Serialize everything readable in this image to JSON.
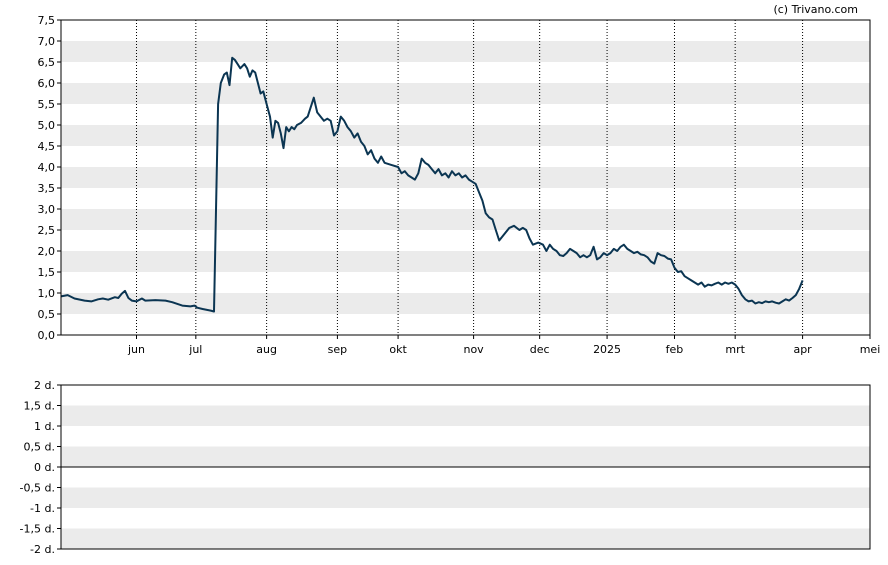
{
  "credit": "(c) Trivano.com",
  "colors": {
    "line": "#0b3552",
    "band": "#ebebeb",
    "grid": "#000000"
  },
  "chart_data": [
    {
      "type": "line",
      "title": "",
      "ylim": [
        0,
        7.5
      ],
      "grid": true,
      "y_ticks": [
        "0,0",
        "0,5",
        "1,0",
        "1,5",
        "2,0",
        "2,5",
        "3,0",
        "3,5",
        "4,0",
        "4,5",
        "5,0",
        "5,5",
        "6,0",
        "6,5",
        "7,0",
        "7,5"
      ],
      "x_ticks": [
        "jun",
        "jul",
        "aug",
        "sep",
        "okt",
        "nov",
        "dec",
        "2025",
        "feb",
        "mrt",
        "apr",
        "mei"
      ],
      "x_tick_positions": [
        1.12,
        2.0,
        3.05,
        4.1,
        5.0,
        6.12,
        7.1,
        8.1,
        9.1,
        10.0,
        11.0,
        12.0
      ],
      "series": [
        {
          "values": [
            [
              0.0,
              0.92
            ],
            [
              0.1,
              0.95
            ],
            [
              0.2,
              0.87
            ],
            [
              0.35,
              0.82
            ],
            [
              0.45,
              0.8
            ],
            [
              0.55,
              0.85
            ],
            [
              0.62,
              0.87
            ],
            [
              0.7,
              0.84
            ],
            [
              0.8,
              0.9
            ],
            [
              0.85,
              0.88
            ],
            [
              0.9,
              0.98
            ],
            [
              0.95,
              1.05
            ],
            [
              1.0,
              0.88
            ],
            [
              1.05,
              0.82
            ],
            [
              1.12,
              0.8
            ],
            [
              1.2,
              0.87
            ],
            [
              1.25,
              0.82
            ],
            [
              1.4,
              0.83
            ],
            [
              1.55,
              0.82
            ],
            [
              1.65,
              0.78
            ],
            [
              1.8,
              0.7
            ],
            [
              1.92,
              0.68
            ],
            [
              1.98,
              0.7
            ],
            [
              2.02,
              0.65
            ],
            [
              2.1,
              0.62
            ],
            [
              2.22,
              0.58
            ],
            [
              2.27,
              0.56
            ],
            [
              2.33,
              5.5
            ],
            [
              2.37,
              6.0
            ],
            [
              2.42,
              6.2
            ],
            [
              2.46,
              6.25
            ],
            [
              2.5,
              5.95
            ],
            [
              2.54,
              6.6
            ],
            [
              2.58,
              6.55
            ],
            [
              2.62,
              6.45
            ],
            [
              2.66,
              6.35
            ],
            [
              2.72,
              6.45
            ],
            [
              2.76,
              6.35
            ],
            [
              2.8,
              6.15
            ],
            [
              2.84,
              6.3
            ],
            [
              2.88,
              6.25
            ],
            [
              2.92,
              6.0
            ],
            [
              2.96,
              5.75
            ],
            [
              3.0,
              5.8
            ],
            [
              3.05,
              5.5
            ],
            [
              3.1,
              5.2
            ],
            [
              3.14,
              4.7
            ],
            [
              3.18,
              5.1
            ],
            [
              3.22,
              5.05
            ],
            [
              3.26,
              4.8
            ],
            [
              3.3,
              4.45
            ],
            [
              3.34,
              4.95
            ],
            [
              3.38,
              4.85
            ],
            [
              3.42,
              4.95
            ],
            [
              3.46,
              4.9
            ],
            [
              3.5,
              5.0
            ],
            [
              3.56,
              5.05
            ],
            [
              3.62,
              5.15
            ],
            [
              3.66,
              5.2
            ],
            [
              3.7,
              5.4
            ],
            [
              3.75,
              5.65
            ],
            [
              3.8,
              5.3
            ],
            [
              3.85,
              5.2
            ],
            [
              3.9,
              5.1
            ],
            [
              3.95,
              5.15
            ],
            [
              4.0,
              5.1
            ],
            [
              4.05,
              4.75
            ],
            [
              4.1,
              4.85
            ],
            [
              4.15,
              5.2
            ],
            [
              4.2,
              5.1
            ],
            [
              4.25,
              4.95
            ],
            [
              4.3,
              4.85
            ],
            [
              4.35,
              4.7
            ],
            [
              4.4,
              4.8
            ],
            [
              4.45,
              4.6
            ],
            [
              4.5,
              4.5
            ],
            [
              4.55,
              4.3
            ],
            [
              4.6,
              4.4
            ],
            [
              4.65,
              4.2
            ],
            [
              4.7,
              4.1
            ],
            [
              4.75,
              4.25
            ],
            [
              4.8,
              4.1
            ],
            [
              4.9,
              4.05
            ],
            [
              5.0,
              4.0
            ],
            [
              5.05,
              3.85
            ],
            [
              5.1,
              3.9
            ],
            [
              5.15,
              3.8
            ],
            [
              5.2,
              3.75
            ],
            [
              5.25,
              3.7
            ],
            [
              5.3,
              3.85
            ],
            [
              5.35,
              4.2
            ],
            [
              5.4,
              4.1
            ],
            [
              5.45,
              4.05
            ],
            [
              5.5,
              3.95
            ],
            [
              5.55,
              3.85
            ],
            [
              5.6,
              3.95
            ],
            [
              5.65,
              3.8
            ],
            [
              5.7,
              3.85
            ],
            [
              5.75,
              3.75
            ],
            [
              5.8,
              3.9
            ],
            [
              5.85,
              3.8
            ],
            [
              5.9,
              3.85
            ],
            [
              5.95,
              3.75
            ],
            [
              6.0,
              3.8
            ],
            [
              6.05,
              3.7
            ],
            [
              6.1,
              3.65
            ],
            [
              6.15,
              3.6
            ],
            [
              6.2,
              3.4
            ],
            [
              6.25,
              3.2
            ],
            [
              6.3,
              2.9
            ],
            [
              6.35,
              2.8
            ],
            [
              6.4,
              2.75
            ],
            [
              6.45,
              2.5
            ],
            [
              6.5,
              2.25
            ],
            [
              6.55,
              2.35
            ],
            [
              6.6,
              2.45
            ],
            [
              6.65,
              2.55
            ],
            [
              6.72,
              2.6
            ],
            [
              6.8,
              2.5
            ],
            [
              6.85,
              2.55
            ],
            [
              6.9,
              2.5
            ],
            [
              6.95,
              2.3
            ],
            [
              7.0,
              2.15
            ],
            [
              7.08,
              2.2
            ],
            [
              7.15,
              2.15
            ],
            [
              7.2,
              2.0
            ],
            [
              7.25,
              2.15
            ],
            [
              7.3,
              2.05
            ],
            [
              7.35,
              2.0
            ],
            [
              7.4,
              1.9
            ],
            [
              7.45,
              1.88
            ],
            [
              7.5,
              1.95
            ],
            [
              7.55,
              2.05
            ],
            [
              7.6,
              2.0
            ],
            [
              7.65,
              1.95
            ],
            [
              7.7,
              1.85
            ],
            [
              7.75,
              1.9
            ],
            [
              7.8,
              1.85
            ],
            [
              7.85,
              1.9
            ],
            [
              7.9,
              2.1
            ],
            [
              7.95,
              1.8
            ],
            [
              8.0,
              1.85
            ],
            [
              8.05,
              1.95
            ],
            [
              8.1,
              1.9
            ],
            [
              8.15,
              1.95
            ],
            [
              8.2,
              2.05
            ],
            [
              8.25,
              2.0
            ],
            [
              8.3,
              2.1
            ],
            [
              8.35,
              2.15
            ],
            [
              8.4,
              2.05
            ],
            [
              8.45,
              2.0
            ],
            [
              8.5,
              1.95
            ],
            [
              8.55,
              1.98
            ],
            [
              8.6,
              1.92
            ],
            [
              8.65,
              1.9
            ],
            [
              8.7,
              1.85
            ],
            [
              8.75,
              1.75
            ],
            [
              8.8,
              1.7
            ],
            [
              8.85,
              1.95
            ],
            [
              8.9,
              1.9
            ],
            [
              8.95,
              1.88
            ],
            [
              9.0,
              1.82
            ],
            [
              9.05,
              1.8
            ],
            [
              9.1,
              1.6
            ],
            [
              9.15,
              1.5
            ],
            [
              9.2,
              1.52
            ],
            [
              9.25,
              1.4
            ],
            [
              9.3,
              1.35
            ],
            [
              9.35,
              1.3
            ],
            [
              9.4,
              1.25
            ],
            [
              9.45,
              1.2
            ],
            [
              9.5,
              1.25
            ],
            [
              9.55,
              1.15
            ],
            [
              9.6,
              1.2
            ],
            [
              9.65,
              1.18
            ],
            [
              9.7,
              1.22
            ],
            [
              9.75,
              1.25
            ],
            [
              9.8,
              1.2
            ],
            [
              9.85,
              1.25
            ],
            [
              9.9,
              1.22
            ],
            [
              9.95,
              1.25
            ],
            [
              10.0,
              1.2
            ],
            [
              10.05,
              1.1
            ],
            [
              10.1,
              0.95
            ],
            [
              10.15,
              0.85
            ],
            [
              10.2,
              0.8
            ],
            [
              10.25,
              0.82
            ],
            [
              10.3,
              0.75
            ],
            [
              10.35,
              0.78
            ],
            [
              10.4,
              0.76
            ],
            [
              10.45,
              0.8
            ],
            [
              10.5,
              0.78
            ],
            [
              10.55,
              0.8
            ],
            [
              10.6,
              0.77
            ],
            [
              10.65,
              0.75
            ],
            [
              10.7,
              0.8
            ],
            [
              10.75,
              0.85
            ],
            [
              10.8,
              0.82
            ],
            [
              10.85,
              0.88
            ],
            [
              10.9,
              0.95
            ],
            [
              10.95,
              1.1
            ],
            [
              11.0,
              1.3
            ]
          ]
        }
      ]
    },
    {
      "type": "line",
      "title": "",
      "ylim": [
        -2,
        2
      ],
      "grid": true,
      "y_ticks": [
        "2 d.",
        "1,5 d.",
        "1 d.",
        "0,5 d.",
        "0 d.",
        "-0,5 d.",
        "-1 d.",
        "-1,5 d.",
        "-2 d."
      ],
      "series": []
    }
  ]
}
